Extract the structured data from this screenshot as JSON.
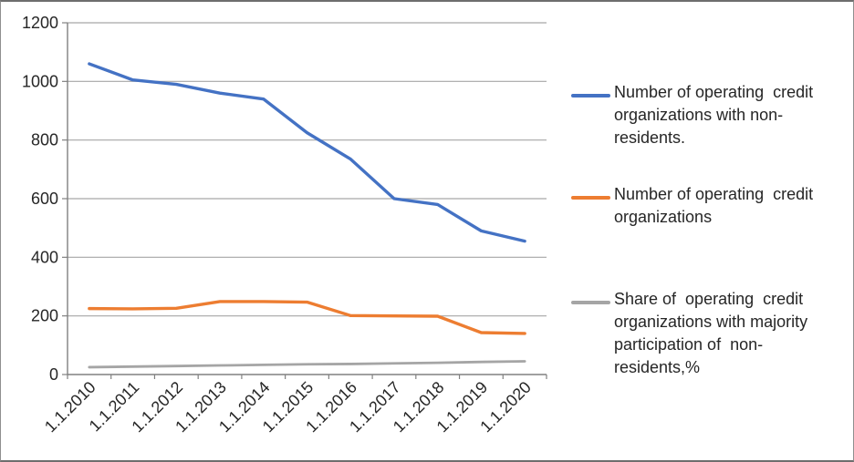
{
  "chart_data": {
    "type": "line",
    "title": "",
    "xlabel": "",
    "ylabel": "",
    "categories": [
      "1.1.2010",
      "1.1.2011",
      "1.1.2012",
      "1.1.2013",
      "1.1.2014",
      "1.1.2015",
      "1.1.2016",
      "1.1.2017",
      "1.1.2018",
      "1.1.2019",
      "1.1.2020"
    ],
    "series": [
      {
        "name": "Number of operating  credit\norganizations with non-\nresidents.",
        "color": "#4472C4",
        "values": [
          1060,
          1005,
          990,
          960,
          940,
          825,
          735,
          600,
          580,
          490,
          455
        ]
      },
      {
        "name": "Number of operating  credit\norganizations",
        "color": "#ED7D31",
        "values": [
          225,
          224,
          226,
          249,
          249,
          247,
          201,
          200,
          199,
          143,
          140
        ]
      },
      {
        "name": "Share of  operating  credit\norganizations with majority\nparticipation of  non-\nresidents,%",
        "color": "#A5A5A5",
        "values": [
          25,
          27,
          29,
          31,
          33,
          35,
          36,
          38,
          40,
          43,
          45
        ]
      }
    ],
    "ylim": [
      0,
      1200
    ],
    "yticks": [
      0,
      200,
      400,
      600,
      800,
      1000,
      1200
    ],
    "grid": true,
    "legend_position": "right"
  },
  "colors": {
    "grid": "#A6A6A6",
    "axis": "#808080",
    "text": "#262626",
    "background": "#FFFFFF",
    "frame_border": "#6E6E6E"
  }
}
